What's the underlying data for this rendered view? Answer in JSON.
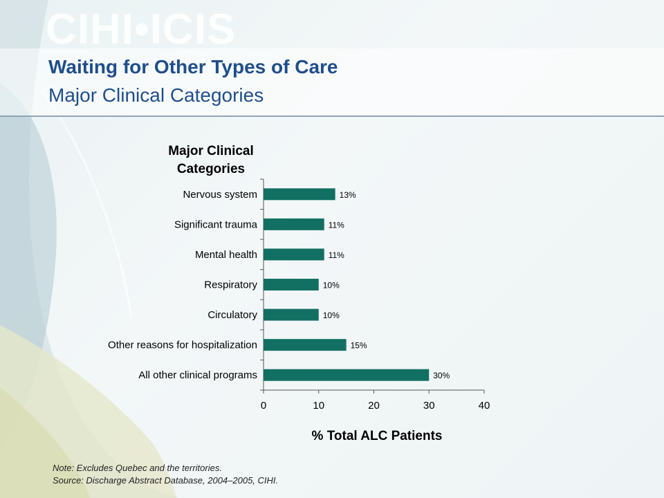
{
  "slide": {
    "logo": "CIHI•ICIS",
    "title": "Waiting for Other Types of Care",
    "subtitle": "Major Clinical Categories",
    "note_line1": "Note: Excludes Quebec and the territories.",
    "note_line2": "Source: Discharge Abstract Database, 2004–2005, CIHI."
  },
  "colors": {
    "bar": "#127063",
    "title": "#1f4e8c"
  },
  "chart_data": {
    "type": "bar",
    "orientation": "horizontal",
    "title_line1": "Major Clinical",
    "title_line2": "Categories",
    "xlabel": "% Total ALC Patients",
    "categories": [
      "Nervous system",
      "Significant trauma",
      "Mental health",
      "Respiratory",
      "Circulatory",
      "Other reasons for hospitalization",
      "All other clinical programs"
    ],
    "values": [
      13,
      11,
      11,
      10,
      10,
      15,
      30
    ],
    "data_labels": [
      "13%",
      "11%",
      "11%",
      "10%",
      "10%",
      "15%",
      "30%"
    ],
    "xlim": [
      0,
      40
    ],
    "xticks": [
      0,
      10,
      20,
      30,
      40
    ],
    "grid": false
  }
}
